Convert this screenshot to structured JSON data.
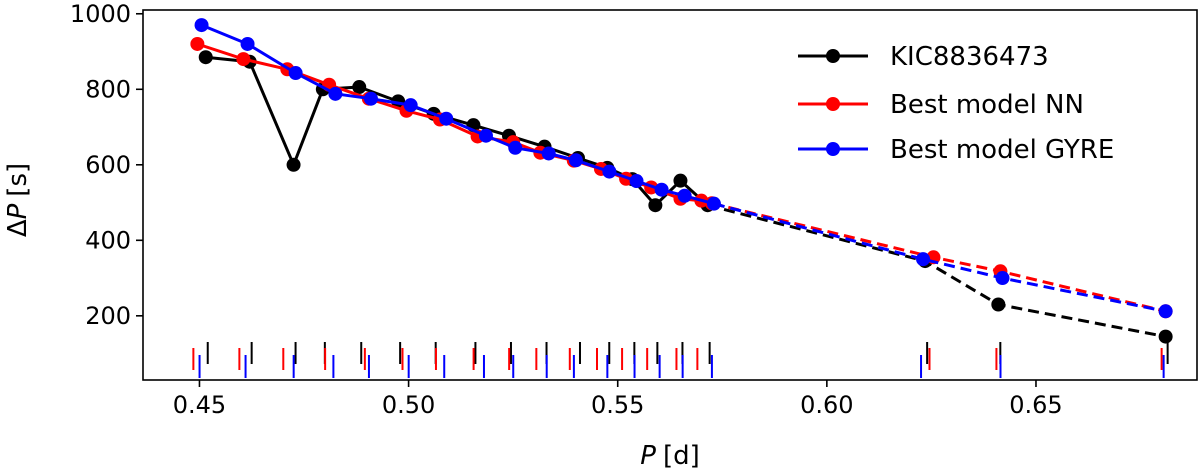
{
  "chart_data": {
    "type": "line",
    "title": "",
    "xlabel_italic": "P",
    "xlabel_unit": "[d]",
    "ylabel_prefix": "Δ",
    "ylabel_italic": "P",
    "ylabel_unit": "[s]",
    "xlim": [
      0.4365,
      0.6885
    ],
    "ylim": [
      30,
      1010
    ],
    "xticks": [
      0.45,
      0.5,
      0.55,
      0.6,
      0.65
    ],
    "xtick_labels": [
      "0.45",
      "0.50",
      "0.55",
      "0.60",
      "0.65"
    ],
    "yticks": [
      200,
      400,
      600,
      800,
      1000
    ],
    "ytick_labels": [
      "200",
      "400",
      "600",
      "800",
      "1000"
    ],
    "legend_position": "top-right",
    "series": [
      {
        "name": "KIC8836473",
        "color": "#000000",
        "solid_points": [
          [
            0.4515,
            885
          ],
          [
            0.462,
            873
          ],
          [
            0.4725,
            600
          ],
          [
            0.4795,
            800
          ],
          [
            0.4882,
            806
          ],
          [
            0.4975,
            768
          ],
          [
            0.506,
            735
          ],
          [
            0.5155,
            705
          ],
          [
            0.524,
            677
          ],
          [
            0.5325,
            648
          ],
          [
            0.5405,
            618
          ],
          [
            0.5475,
            592
          ],
          [
            0.5535,
            562
          ],
          [
            0.559,
            493
          ],
          [
            0.565,
            558
          ],
          [
            0.5715,
            493
          ]
        ],
        "dashed_points": [
          [
            0.5715,
            493
          ],
          [
            0.6235,
            345
          ],
          [
            0.641,
            230
          ],
          [
            0.681,
            145
          ]
        ],
        "tick_positions": [
          0.4515,
          0.462,
          0.4725,
          0.4795,
          0.4882,
          0.4975,
          0.506,
          0.5155,
          0.524,
          0.5325,
          0.5405,
          0.5475,
          0.5535,
          0.559,
          0.565,
          0.5715,
          0.6235,
          0.641,
          0.681
        ]
      },
      {
        "name": "Best model NN",
        "color": "#ff0000",
        "solid_points": [
          [
            0.4495,
            920
          ],
          [
            0.4605,
            880
          ],
          [
            0.471,
            853
          ],
          [
            0.481,
            812
          ],
          [
            0.4905,
            775
          ],
          [
            0.4995,
            743
          ],
          [
            0.5075,
            720
          ],
          [
            0.5165,
            675
          ],
          [
            0.525,
            660
          ],
          [
            0.5315,
            632
          ],
          [
            0.5395,
            611
          ],
          [
            0.546,
            589
          ],
          [
            0.552,
            563
          ],
          [
            0.558,
            540
          ],
          [
            0.565,
            510
          ],
          [
            0.57,
            505
          ],
          [
            0.5725,
            498
          ]
        ],
        "dashed_points": [
          [
            0.5725,
            498
          ],
          [
            0.6255,
            355
          ],
          [
            0.6415,
            318
          ],
          [
            0.681,
            212
          ]
        ],
        "tick_positions": [
          0.4495,
          0.4605,
          0.471,
          0.481,
          0.4905,
          0.4995,
          0.5075,
          0.5165,
          0.525,
          0.5315,
          0.5395,
          0.546,
          0.552,
          0.558,
          0.565,
          0.57,
          0.6255,
          0.6415,
          0.681
        ]
      },
      {
        "name": "Best model GYRE",
        "color": "#0000ff",
        "solid_points": [
          [
            0.4505,
            970
          ],
          [
            0.4615,
            920
          ],
          [
            0.473,
            843
          ],
          [
            0.4825,
            788
          ],
          [
            0.491,
            775
          ],
          [
            0.5005,
            758
          ],
          [
            0.509,
            722
          ],
          [
            0.5185,
            677
          ],
          [
            0.5255,
            645
          ],
          [
            0.5335,
            630
          ],
          [
            0.54,
            612
          ],
          [
            0.548,
            582
          ],
          [
            0.5545,
            557
          ],
          [
            0.5605,
            534
          ],
          [
            0.566,
            518
          ],
          [
            0.573,
            497
          ]
        ],
        "dashed_points": [
          [
            0.573,
            497
          ],
          [
            0.623,
            350
          ],
          [
            0.642,
            300
          ],
          [
            0.681,
            212
          ]
        ],
        "tick_positions": [
          0.4505,
          0.4615,
          0.473,
          0.4825,
          0.491,
          0.5005,
          0.509,
          0.5185,
          0.5255,
          0.5335,
          0.54,
          0.548,
          0.5545,
          0.5605,
          0.566,
          0.573,
          0.623,
          0.642,
          0.681
        ]
      }
    ]
  }
}
